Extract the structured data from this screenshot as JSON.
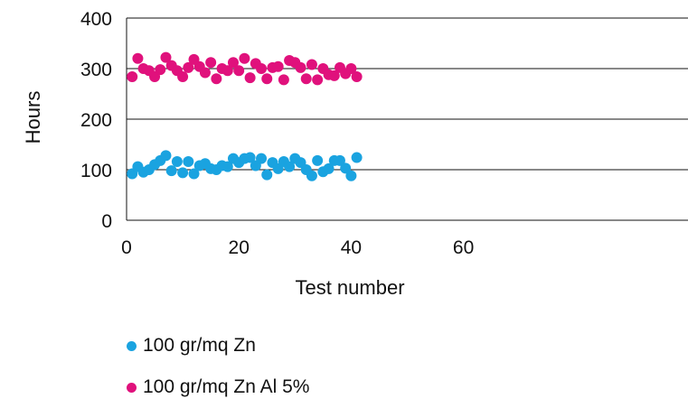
{
  "chart_data": {
    "type": "scatter",
    "xlabel": "Test number",
    "ylabel": "Hours",
    "xlim": [
      0,
      100
    ],
    "ylim": [
      0,
      400
    ],
    "x_ticks": [
      0,
      20,
      40,
      60
    ],
    "y_ticks": [
      0,
      100,
      200,
      300,
      400
    ],
    "grid": "horizontal",
    "legend_position": "bottom",
    "series": [
      {
        "name": "100 gr/mq Zn",
        "color": "#1aa3e0",
        "x": [
          1,
          2,
          3,
          4,
          5,
          6,
          7,
          8,
          9,
          10,
          11,
          12,
          13,
          14,
          15,
          16,
          17,
          18,
          19,
          20,
          21,
          22,
          23,
          24,
          25,
          26,
          27,
          28,
          29,
          30,
          31,
          32,
          33,
          34,
          35,
          36,
          37,
          38,
          39,
          40,
          41
        ],
        "y": [
          92,
          106,
          95,
          100,
          110,
          118,
          128,
          98,
          116,
          94,
          116,
          92,
          108,
          112,
          102,
          100,
          108,
          106,
          122,
          114,
          122,
          124,
          108,
          122,
          90,
          114,
          102,
          116,
          106,
          122,
          114,
          100,
          88,
          118,
          96,
          102,
          118,
          118,
          103,
          88,
          124
        ]
      },
      {
        "name": "100 gr/mq Zn Al 5%",
        "color": "#e0117c",
        "x": [
          1,
          2,
          3,
          4,
          5,
          6,
          7,
          8,
          9,
          10,
          11,
          12,
          13,
          14,
          15,
          16,
          17,
          18,
          19,
          20,
          21,
          22,
          23,
          24,
          25,
          26,
          27,
          28,
          29,
          30,
          31,
          32,
          33,
          34,
          35,
          36,
          37,
          38,
          39,
          40,
          41
        ],
        "y": [
          284,
          320,
          300,
          296,
          284,
          298,
          322,
          306,
          296,
          284,
          302,
          318,
          304,
          292,
          312,
          280,
          300,
          296,
          312,
          296,
          320,
          282,
          310,
          300,
          280,
          302,
          304,
          278,
          316,
          312,
          302,
          280,
          308,
          278,
          300,
          288,
          286,
          302,
          290,
          300,
          284
        ]
      }
    ]
  }
}
